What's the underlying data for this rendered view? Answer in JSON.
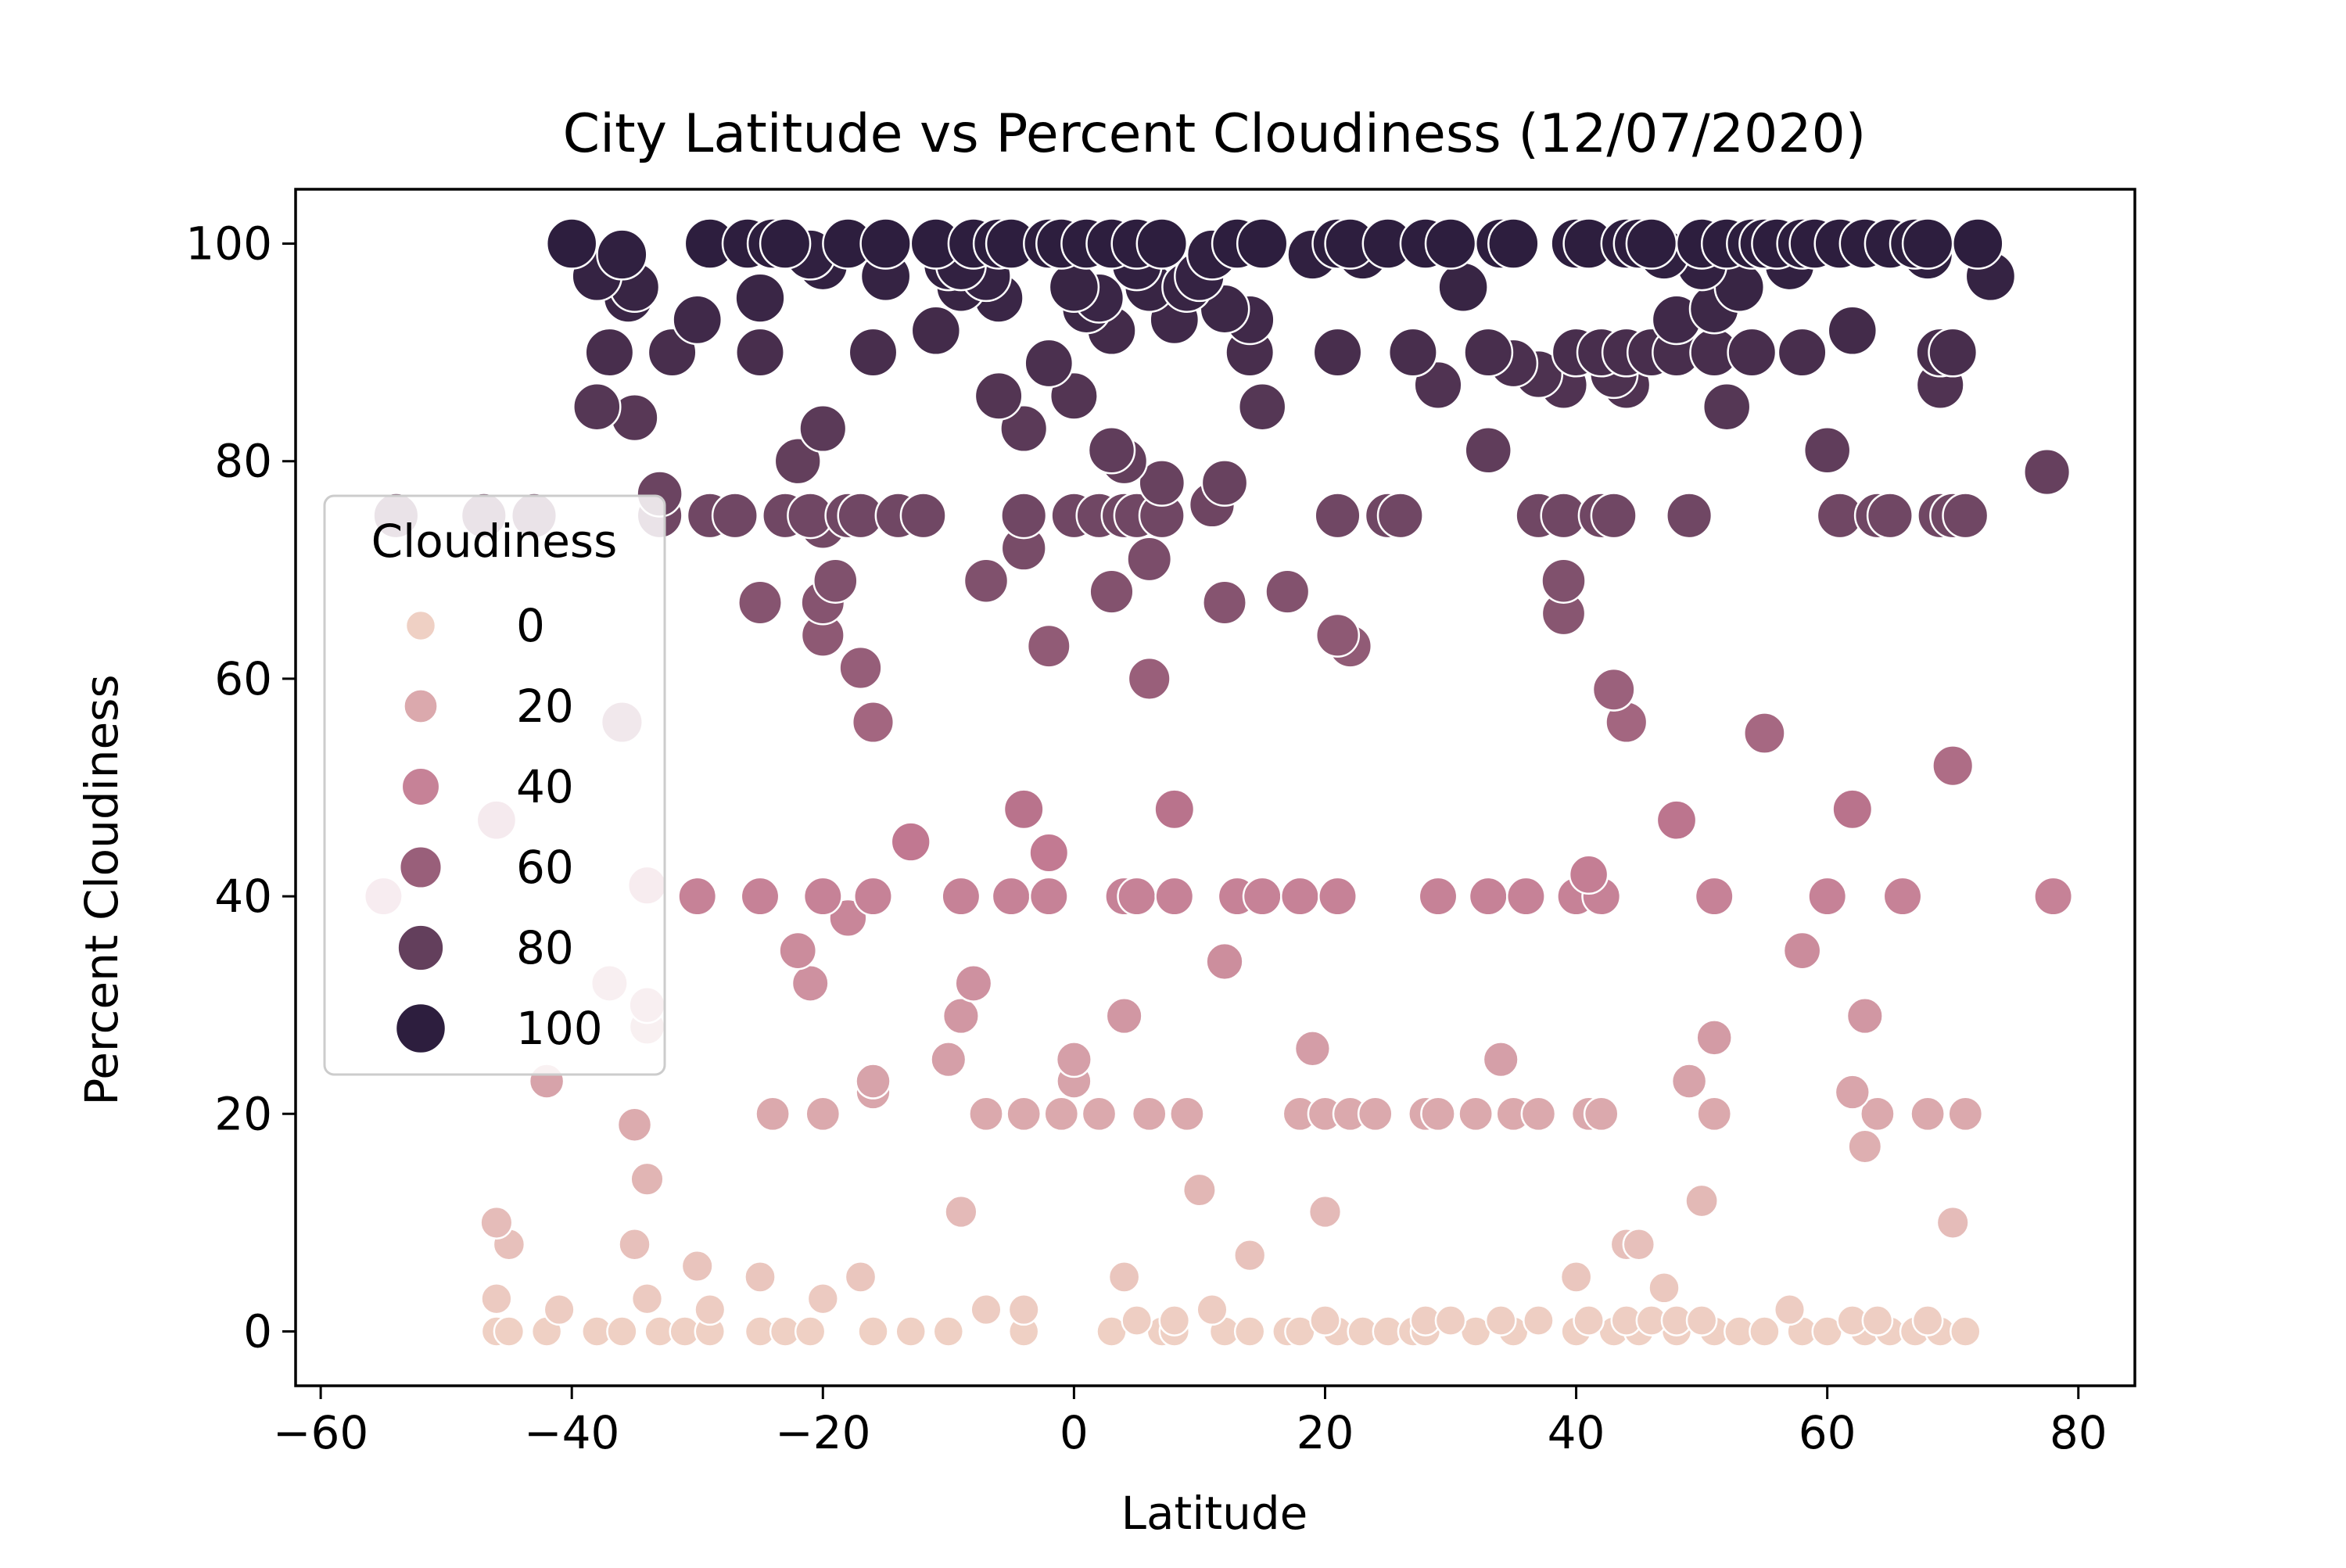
{
  "chart_data": {
    "type": "scatter",
    "title": "City Latitude vs Percent Cloudiness (12/07/2020)",
    "xlabel": "Latitude",
    "ylabel": "Percent Cloudiness",
    "xlim": [
      -62,
      84.5
    ],
    "ylim": [
      -5,
      105
    ],
    "xticks": [
      -60,
      -40,
      -20,
      0,
      20,
      40,
      60,
      80
    ],
    "xtick_labels": [
      "−60",
      "−40",
      "−20",
      "0",
      "20",
      "40",
      "60",
      "80"
    ],
    "yticks": [
      0,
      20,
      40,
      60,
      80,
      100
    ],
    "ytick_labels": [
      "0",
      "20",
      "40",
      "60",
      "80",
      "100"
    ],
    "grid": false,
    "hue_and_size_by": "Cloudiness",
    "color_low": "#efd0c4",
    "color_high": "#2d1e3e",
    "legend": {
      "title": "Cloudiness",
      "placement": "center-left",
      "entries": [
        {
          "label": "0",
          "value": 0
        },
        {
          "label": "20",
          "value": 20
        },
        {
          "label": "40",
          "value": 40
        },
        {
          "label": "60",
          "value": 60
        },
        {
          "label": "80",
          "value": 80
        },
        {
          "label": "100",
          "value": 100
        }
      ]
    },
    "points": [
      [
        -40,
        100
      ],
      [
        -38,
        97
      ],
      [
        -37,
        90
      ],
      [
        -38,
        85
      ],
      [
        -36,
        99
      ],
      [
        -35,
        96
      ],
      [
        -35.5,
        95
      ],
      [
        -35,
        84
      ],
      [
        -33,
        77
      ],
      [
        -33,
        75
      ],
      [
        -32,
        90
      ],
      [
        -30,
        93
      ],
      [
        -29,
        100
      ],
      [
        -29,
        75
      ],
      [
        -27,
        75
      ],
      [
        -26,
        100
      ],
      [
        -25,
        95
      ],
      [
        -25,
        90
      ],
      [
        -25,
        67
      ],
      [
        -24,
        100
      ],
      [
        -23,
        100
      ],
      [
        -23,
        75
      ],
      [
        -22,
        80
      ],
      [
        -21,
        99
      ],
      [
        -21,
        75
      ],
      [
        -20,
        98
      ],
      [
        -20,
        83
      ],
      [
        -20,
        74
      ],
      [
        -20,
        67
      ],
      [
        -19,
        69
      ],
      [
        -20,
        64
      ],
      [
        -18,
        100
      ],
      [
        -18,
        75
      ],
      [
        -17,
        75
      ],
      [
        -17,
        61
      ],
      [
        -16,
        56
      ],
      [
        -15,
        100
      ],
      [
        -15,
        97
      ],
      [
        -16,
        90
      ],
      [
        -14,
        75
      ],
      [
        -12,
        75
      ],
      [
        -11,
        100
      ],
      [
        -11,
        92
      ],
      [
        -10,
        98
      ],
      [
        -9,
        96
      ],
      [
        -9,
        98
      ],
      [
        -8,
        100
      ],
      [
        -7,
        97
      ],
      [
        -7,
        69
      ],
      [
        -6,
        100
      ],
      [
        -6,
        95
      ],
      [
        -6,
        86
      ],
      [
        -5,
        100
      ],
      [
        -4,
        83
      ],
      [
        -4,
        75
      ],
      [
        -4,
        72
      ],
      [
        -2,
        100
      ],
      [
        -2,
        89
      ],
      [
        -2,
        63
      ],
      [
        -1,
        100
      ],
      [
        0,
        96
      ],
      [
        0,
        86
      ],
      [
        0,
        75
      ],
      [
        1,
        100
      ],
      [
        1,
        94
      ],
      [
        2,
        95
      ],
      [
        2,
        75
      ],
      [
        3,
        100
      ],
      [
        3,
        92
      ],
      [
        3,
        81
      ],
      [
        3,
        68
      ],
      [
        4,
        80
      ],
      [
        4,
        75
      ],
      [
        5,
        98
      ],
      [
        5,
        100
      ],
      [
        5,
        75
      ],
      [
        6,
        96
      ],
      [
        6,
        71
      ],
      [
        7,
        100
      ],
      [
        6,
        60
      ],
      [
        7,
        78
      ],
      [
        7,
        75
      ],
      [
        8,
        93
      ],
      [
        9,
        96
      ],
      [
        10,
        97
      ],
      [
        11,
        99
      ],
      [
        11,
        76
      ],
      [
        12,
        94
      ],
      [
        12,
        67
      ],
      [
        12,
        78
      ],
      [
        13,
        100
      ],
      [
        14,
        93
      ],
      [
        14,
        90
      ],
      [
        15,
        85
      ],
      [
        15,
        100
      ],
      [
        17,
        68
      ],
      [
        19,
        99
      ],
      [
        21,
        100
      ],
      [
        21,
        90
      ],
      [
        21,
        75
      ],
      [
        21,
        64
      ],
      [
        22,
        100
      ],
      [
        23,
        99
      ],
      [
        22,
        63
      ],
      [
        25,
        100
      ],
      [
        25,
        75
      ],
      [
        26,
        75
      ],
      [
        27,
        90
      ],
      [
        28,
        100
      ],
      [
        29,
        87
      ],
      [
        30,
        100
      ],
      [
        31,
        96
      ],
      [
        33,
        81
      ],
      [
        33,
        90
      ],
      [
        34,
        100
      ],
      [
        35,
        100
      ],
      [
        35,
        89
      ],
      [
        37,
        88
      ],
      [
        37,
        75
      ],
      [
        39,
        75
      ],
      [
        39,
        87
      ],
      [
        40,
        90
      ],
      [
        40,
        100
      ],
      [
        39,
        69
      ],
      [
        39,
        66
      ],
      [
        41,
        100
      ],
      [
        42,
        90
      ],
      [
        42,
        75
      ],
      [
        43,
        88
      ],
      [
        44,
        100
      ],
      [
        43,
        59
      ],
      [
        43,
        75
      ],
      [
        44,
        87
      ],
      [
        44,
        90
      ],
      [
        45,
        100
      ],
      [
        46,
        100
      ],
      [
        46,
        90
      ],
      [
        47,
        99
      ],
      [
        48,
        93
      ],
      [
        48,
        90
      ],
      [
        49,
        75
      ],
      [
        50,
        100
      ],
      [
        50,
        98
      ],
      [
        51,
        94
      ],
      [
        51,
        90
      ],
      [
        52,
        85
      ],
      [
        52,
        100
      ],
      [
        53,
        96
      ],
      [
        54,
        100
      ],
      [
        54,
        90
      ],
      [
        55,
        100
      ],
      [
        56,
        100
      ],
      [
        57,
        98
      ],
      [
        58,
        90
      ],
      [
        58,
        100
      ],
      [
        59,
        100
      ],
      [
        60,
        81
      ],
      [
        61,
        100
      ],
      [
        62,
        92
      ],
      [
        61,
        75
      ],
      [
        63,
        100
      ],
      [
        64,
        75
      ],
      [
        65,
        100
      ],
      [
        65,
        75
      ],
      [
        67,
        100
      ],
      [
        68,
        100
      ],
      [
        68,
        99
      ],
      [
        69,
        87
      ],
      [
        69,
        90
      ],
      [
        70,
        90
      ],
      [
        69,
        75
      ],
      [
        70,
        75
      ],
      [
        72,
        100
      ],
      [
        73,
        97
      ],
      [
        71,
        75
      ],
      [
        77.5,
        79
      ],
      [
        -54,
        75
      ],
      [
        -47,
        75
      ],
      [
        -43,
        75
      ],
      [
        -36,
        56
      ],
      [
        -34,
        41
      ],
      [
        -55,
        40
      ],
      [
        -46,
        47
      ],
      [
        -30,
        40
      ],
      [
        -25,
        40
      ],
      [
        -20,
        40
      ],
      [
        -18,
        38
      ],
      [
        -16,
        40
      ],
      [
        -13,
        45
      ],
      [
        -9,
        40
      ],
      [
        -8,
        32
      ],
      [
        -5,
        40
      ],
      [
        -4,
        48
      ],
      [
        -2,
        44
      ],
      [
        -2,
        40
      ],
      [
        4,
        40
      ],
      [
        5,
        40
      ],
      [
        8,
        40
      ],
      [
        8,
        48
      ],
      [
        12,
        34
      ],
      [
        13,
        40
      ],
      [
        15,
        40
      ],
      [
        18,
        40
      ],
      [
        21,
        40
      ],
      [
        29,
        40
      ],
      [
        33,
        40
      ],
      [
        36,
        40
      ],
      [
        40,
        40
      ],
      [
        41,
        42
      ],
      [
        42,
        40
      ],
      [
        43,
        59
      ],
      [
        44,
        56
      ],
      [
        48,
        47
      ],
      [
        51,
        40
      ],
      [
        55,
        55
      ],
      [
        58,
        35
      ],
      [
        60,
        40
      ],
      [
        62,
        48
      ],
      [
        66,
        40
      ],
      [
        70,
        52
      ],
      [
        78,
        40
      ],
      [
        -37,
        32
      ],
      [
        -34,
        30
      ],
      [
        -34,
        28
      ],
      [
        -42,
        23
      ],
      [
        -35,
        19
      ],
      [
        -34,
        14
      ],
      [
        -35,
        8
      ],
      [
        -46,
        10
      ],
      [
        -45,
        8
      ],
      [
        -24,
        20
      ],
      [
        -22,
        35
      ],
      [
        -21,
        32
      ],
      [
        -20,
        20
      ],
      [
        -16,
        23
      ],
      [
        -16,
        22
      ],
      [
        -10,
        25
      ],
      [
        -9,
        29
      ],
      [
        -9,
        11
      ],
      [
        -7,
        20
      ],
      [
        -4,
        20
      ],
      [
        -1,
        20
      ],
      [
        0,
        25
      ],
      [
        0,
        23
      ],
      [
        2,
        20
      ],
      [
        4,
        29
      ],
      [
        6,
        20
      ],
      [
        9,
        20
      ],
      [
        10,
        13
      ],
      [
        14,
        7
      ],
      [
        18,
        20
      ],
      [
        19,
        26
      ],
      [
        20,
        20
      ],
      [
        20,
        11
      ],
      [
        22,
        20
      ],
      [
        24,
        20
      ],
      [
        28,
        20
      ],
      [
        29,
        20
      ],
      [
        32,
        20
      ],
      [
        34,
        25
      ],
      [
        35,
        20
      ],
      [
        37,
        20
      ],
      [
        41,
        20
      ],
      [
        42,
        20
      ],
      [
        44,
        8
      ],
      [
        45,
        8
      ],
      [
        49,
        23
      ],
      [
        50,
        12
      ],
      [
        51,
        27
      ],
      [
        51,
        20
      ],
      [
        62,
        22
      ],
      [
        63,
        29
      ],
      [
        63,
        17
      ],
      [
        64,
        20
      ],
      [
        68,
        20
      ],
      [
        70,
        10
      ],
      [
        71,
        20
      ],
      [
        -46,
        3
      ],
      [
        -46,
        0
      ],
      [
        -45,
        0
      ],
      [
        -42,
        0
      ],
      [
        -41,
        2
      ],
      [
        -38,
        0
      ],
      [
        -36,
        0
      ],
      [
        -34,
        3
      ],
      [
        -33,
        0
      ],
      [
        -31,
        0
      ],
      [
        -30,
        6
      ],
      [
        -29,
        2
      ],
      [
        -29,
        0
      ],
      [
        -25,
        5
      ],
      [
        -25,
        0
      ],
      [
        -23,
        0
      ],
      [
        -21,
        0
      ],
      [
        -20,
        3
      ],
      [
        -17,
        5
      ],
      [
        -16,
        0
      ],
      [
        -13,
        0
      ],
      [
        -10,
        0
      ],
      [
        -7,
        2
      ],
      [
        -4,
        2
      ],
      [
        -4,
        0
      ],
      [
        3,
        0
      ],
      [
        4,
        5
      ],
      [
        5,
        1
      ],
      [
        7,
        0
      ],
      [
        8,
        1
      ],
      [
        8,
        0
      ],
      [
        11,
        2
      ],
      [
        12,
        0
      ],
      [
        14,
        0
      ],
      [
        17,
        0
      ],
      [
        18,
        0
      ],
      [
        20,
        1
      ],
      [
        21,
        0
      ],
      [
        23,
        0
      ],
      [
        25,
        0
      ],
      [
        27,
        0
      ],
      [
        28,
        0
      ],
      [
        28,
        1
      ],
      [
        30,
        1
      ],
      [
        32,
        0
      ],
      [
        34,
        1
      ],
      [
        35,
        0
      ],
      [
        37,
        1
      ],
      [
        40,
        5
      ],
      [
        40,
        0
      ],
      [
        41,
        1
      ],
      [
        43,
        0
      ],
      [
        44,
        1
      ],
      [
        45,
        0
      ],
      [
        46,
        1
      ],
      [
        47,
        4
      ],
      [
        48,
        1
      ],
      [
        48,
        0
      ],
      [
        50,
        1
      ],
      [
        51,
        0
      ],
      [
        53,
        0
      ],
      [
        55,
        0
      ],
      [
        57,
        2
      ],
      [
        58,
        0
      ],
      [
        60,
        0
      ],
      [
        62,
        1
      ],
      [
        63,
        0
      ],
      [
        64,
        1
      ],
      [
        65,
        0
      ],
      [
        67,
        0
      ],
      [
        68,
        1
      ],
      [
        69,
        0
      ],
      [
        71,
        0
      ]
    ]
  }
}
